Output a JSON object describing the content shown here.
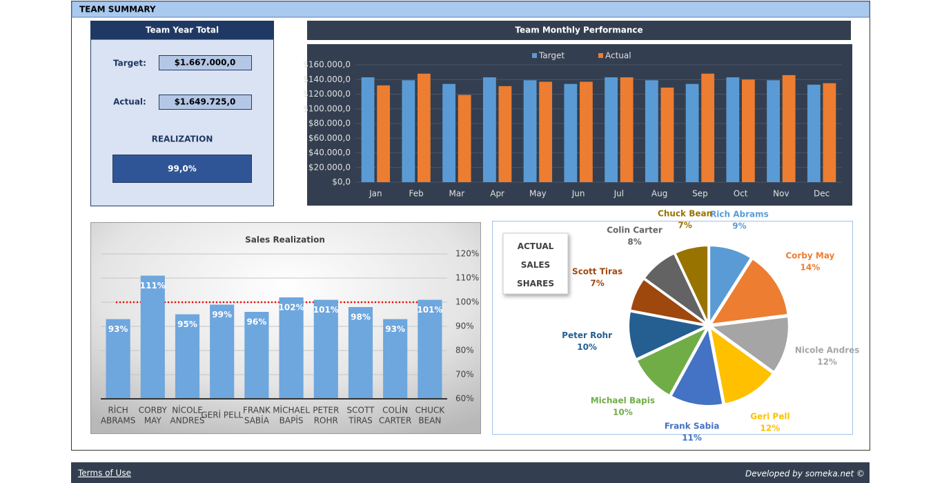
{
  "header": {
    "title": "TEAM SUMMARY"
  },
  "year_total": {
    "title": "Team Year Total",
    "target_label": "Target:",
    "target_value": "$1.667.000,0",
    "actual_label": "Actual:",
    "actual_value": "$1.649.725,0",
    "realization_label": "REALIZATION",
    "realization_value": "99,0%"
  },
  "chart_data": [
    {
      "type": "bar",
      "title": "Team Monthly Performance",
      "categories": [
        "Jan",
        "Feb",
        "Mar",
        "Apr",
        "May",
        "Jun",
        "Jul",
        "Aug",
        "Sep",
        "Oct",
        "Nov",
        "Dec"
      ],
      "series": [
        {
          "name": "Target",
          "color": "#5b9bd5",
          "values": [
            143000,
            139000,
            134000,
            143000,
            139000,
            134000,
            143000,
            139000,
            134000,
            143000,
            139000,
            133000
          ]
        },
        {
          "name": "Actual",
          "color": "#ed7d31",
          "values": [
            132000,
            148000,
            119000,
            131000,
            137000,
            137000,
            143000,
            129000,
            148000,
            140000,
            146000,
            135000
          ]
        }
      ],
      "ylim": [
        0,
        160000
      ],
      "yticks": [
        {
          "value": 0,
          "label": "$0,0"
        },
        {
          "value": 20000,
          "label": "$20.000,0"
        },
        {
          "value": 40000,
          "label": "$40.000,0"
        },
        {
          "value": 60000,
          "label": "$60.000,0"
        },
        {
          "value": 80000,
          "label": "$80.000,0"
        },
        {
          "value": 100000,
          "label": "$100.000,0"
        },
        {
          "value": 120000,
          "label": "$120.000,0"
        },
        {
          "value": 140000,
          "label": "$140.000,0"
        },
        {
          "value": 160000,
          "label": "$160.000,0"
        }
      ],
      "grid": true,
      "legend": "top"
    },
    {
      "type": "bar",
      "title": "Sales Realization",
      "categories": [
        "RİCH\nABRAMS",
        "CORBY\nMAY",
        "NİCOLE\nANDRES",
        "GERİ PELL",
        "FRANK\nSABİA",
        "MİCHAEL\nBAPİS",
        "PETER\nROHR",
        "SCOTT\nTİRAS",
        "COLİN\nCARTER",
        "CHUCK\nBEAN"
      ],
      "values": [
        93,
        111,
        95,
        99,
        96,
        102,
        101,
        98,
        93,
        101
      ],
      "value_labels": [
        "93%",
        "111%",
        "95%",
        "99%",
        "96%",
        "102%",
        "101%",
        "98%",
        "93%",
        "101%"
      ],
      "color": "#6ea6de",
      "ylim": [
        60,
        120
      ],
      "yticks": [
        {
          "value": 60,
          "label": "60%"
        },
        {
          "value": 70,
          "label": "70%"
        },
        {
          "value": 80,
          "label": "80%"
        },
        {
          "value": 90,
          "label": "90%"
        },
        {
          "value": 100,
          "label": "100%"
        },
        {
          "value": 110,
          "label": "110%"
        },
        {
          "value": 120,
          "label": "120%"
        }
      ],
      "reference_line": 100,
      "grid": true
    },
    {
      "type": "pie",
      "title": "ACTUAL\nSALES\nSHARES",
      "categories": [
        "Rich Abrams",
        "Corby May",
        "Nicole Andres",
        "Geri Pell",
        "Frank Sabia",
        "Michael Bapis",
        "Peter Rohr",
        "Scott Tiras",
        "Colin Carter",
        "Chuck Bean"
      ],
      "values": [
        9,
        14,
        12,
        12,
        11,
        10,
        10,
        7,
        8,
        7
      ],
      "value_labels": [
        "9%",
        "14%",
        "12%",
        "12%",
        "11%",
        "10%",
        "10%",
        "7%",
        "8%",
        "7%"
      ],
      "colors": [
        "#5b9bd5",
        "#ed7d31",
        "#a5a5a5",
        "#ffc000",
        "#4472c4",
        "#70ad47",
        "#255e91",
        "#9e480e",
        "#636363",
        "#997300"
      ]
    }
  ],
  "footer": {
    "link": "Terms of Use",
    "credit": "Developed by someka.net ©"
  }
}
